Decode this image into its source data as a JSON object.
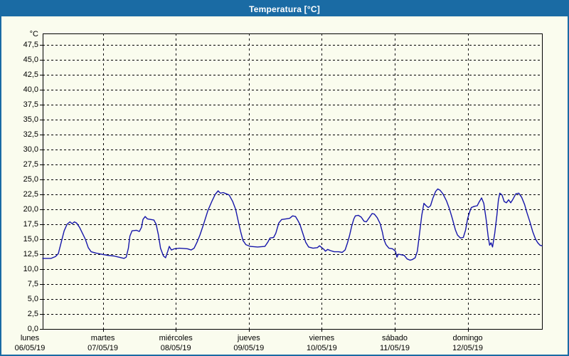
{
  "window": {
    "title": "Temperatura [°C]"
  },
  "colors": {
    "titlebar_bg": "#1a6ba4",
    "window_border": "#1a6ba4",
    "plot_background": "#fafcee",
    "grid": "#000000",
    "axis": "#000000",
    "series_line": "#1616aa",
    "title_text": "#ffffff",
    "label_text": "#000000"
  },
  "chart_data": {
    "type": "line",
    "title": "Temperatura [°C]",
    "ylabel": "°C",
    "xlabel": "",
    "legend": "none",
    "grid": "dashed",
    "ylim": [
      0,
      49.4
    ],
    "y_tick_step": 2.5,
    "y_tick_labels": [
      "0,0",
      "2,5",
      "5,0",
      "7,5",
      "10,0",
      "12,5",
      "15,0",
      "17,5",
      "20,0",
      "22,5",
      "25,0",
      "27,5",
      "30,0",
      "32,5",
      "35,0",
      "37,5",
      "40,0",
      "42,5",
      "45,0",
      "47,5"
    ],
    "y_tick_values": [
      0,
      2.5,
      5,
      7.5,
      10,
      12.5,
      15,
      17.5,
      20,
      22.5,
      25,
      27.5,
      30,
      32.5,
      35,
      37.5,
      40,
      42.5,
      45,
      47.5
    ],
    "x_days": [
      {
        "name": "lunes",
        "date": "06/05/19"
      },
      {
        "name": "martes",
        "date": "07/05/19"
      },
      {
        "name": "miércoles",
        "date": "08/05/19"
      },
      {
        "name": "jueves",
        "date": "09/05/19"
      },
      {
        "name": "viernes",
        "date": "10/05/19"
      },
      {
        "name": "sábado",
        "date": "11/05/19"
      },
      {
        "name": "domingo",
        "date": "12/05/19"
      }
    ],
    "series": [
      {
        "name": "Temperatura",
        "unit": "°C",
        "color": "#1616aa",
        "points": [
          [
            0.175,
            11.8
          ],
          [
            0.29,
            11.8
          ],
          [
            0.35,
            12.1
          ],
          [
            0.39,
            12.6
          ],
          [
            0.43,
            14.5
          ],
          [
            0.47,
            16.4
          ],
          [
            0.51,
            17.5
          ],
          [
            0.55,
            17.9
          ],
          [
            0.58,
            17.6
          ],
          [
            0.61,
            17.9
          ],
          [
            0.64,
            17.7
          ],
          [
            0.68,
            17.0
          ],
          [
            0.72,
            16.0
          ],
          [
            0.76,
            15.0
          ],
          [
            0.8,
            13.6
          ],
          [
            0.84,
            12.9
          ],
          [
            0.9,
            12.7
          ],
          [
            0.98,
            12.5
          ],
          [
            1.07,
            12.3
          ],
          [
            1.15,
            12.2
          ],
          [
            1.22,
            12.0
          ],
          [
            1.29,
            11.8
          ],
          [
            1.32,
            12.0
          ],
          [
            1.35,
            13.5
          ],
          [
            1.37,
            15.5
          ],
          [
            1.4,
            16.4
          ],
          [
            1.46,
            16.5
          ],
          [
            1.5,
            16.3
          ],
          [
            1.53,
            17.0
          ],
          [
            1.55,
            18.3
          ],
          [
            1.58,
            18.8
          ],
          [
            1.61,
            18.4
          ],
          [
            1.66,
            18.3
          ],
          [
            1.7,
            18.2
          ],
          [
            1.73,
            17.5
          ],
          [
            1.76,
            15.8
          ],
          [
            1.79,
            13.5
          ],
          [
            1.83,
            12.2
          ],
          [
            1.86,
            11.9
          ],
          [
            1.89,
            13.0
          ],
          [
            1.91,
            13.8
          ],
          [
            1.94,
            13.2
          ],
          [
            1.98,
            13.4
          ],
          [
            2.05,
            13.5
          ],
          [
            2.16,
            13.4
          ],
          [
            2.21,
            13.2
          ],
          [
            2.25,
            13.5
          ],
          [
            2.29,
            14.5
          ],
          [
            2.33,
            15.7
          ],
          [
            2.38,
            17.5
          ],
          [
            2.44,
            19.8
          ],
          [
            2.5,
            21.5
          ],
          [
            2.54,
            22.5
          ],
          [
            2.58,
            23.1
          ],
          [
            2.61,
            22.7
          ],
          [
            2.65,
            22.8
          ],
          [
            2.69,
            22.6
          ],
          [
            2.73,
            22.4
          ],
          [
            2.78,
            21.3
          ],
          [
            2.82,
            20.0
          ],
          [
            2.86,
            17.8
          ],
          [
            2.89,
            16.2
          ],
          [
            2.92,
            14.8
          ],
          [
            2.96,
            14.1
          ],
          [
            3.02,
            13.8
          ],
          [
            3.12,
            13.7
          ],
          [
            3.22,
            13.8
          ],
          [
            3.26,
            14.5
          ],
          [
            3.29,
            15.2
          ],
          [
            3.34,
            15.3
          ],
          [
            3.37,
            16.0
          ],
          [
            3.41,
            17.7
          ],
          [
            3.45,
            18.3
          ],
          [
            3.51,
            18.4
          ],
          [
            3.56,
            18.5
          ],
          [
            3.6,
            18.9
          ],
          [
            3.64,
            18.8
          ],
          [
            3.67,
            18.2
          ],
          [
            3.7,
            17.5
          ],
          [
            3.74,
            16.0
          ],
          [
            3.78,
            14.5
          ],
          [
            3.82,
            13.7
          ],
          [
            3.88,
            13.5
          ],
          [
            3.94,
            13.6
          ],
          [
            3.97,
            13.9
          ],
          [
            4.0,
            13.6
          ],
          [
            4.03,
            13.3
          ],
          [
            4.05,
            13.0
          ],
          [
            4.08,
            13.3
          ],
          [
            4.12,
            13.1
          ],
          [
            4.17,
            12.9
          ],
          [
            4.23,
            12.9
          ],
          [
            4.28,
            12.8
          ],
          [
            4.32,
            13.2
          ],
          [
            4.35,
            14.3
          ],
          [
            4.38,
            15.6
          ],
          [
            4.41,
            17.2
          ],
          [
            4.44,
            18.4
          ],
          [
            4.46,
            18.9
          ],
          [
            4.5,
            19.0
          ],
          [
            4.54,
            18.7
          ],
          [
            4.58,
            18.0
          ],
          [
            4.61,
            17.9
          ],
          [
            4.65,
            18.6
          ],
          [
            4.69,
            19.3
          ],
          [
            4.72,
            19.2
          ],
          [
            4.76,
            18.6
          ],
          [
            4.8,
            17.6
          ],
          [
            4.83,
            16.2
          ],
          [
            4.85,
            15.0
          ],
          [
            4.88,
            14.1
          ],
          [
            4.92,
            13.5
          ],
          [
            4.97,
            13.4
          ],
          [
            5.01,
            13.0
          ],
          [
            5.03,
            12.0
          ],
          [
            5.05,
            12.5
          ],
          [
            5.09,
            12.4
          ],
          [
            5.13,
            12.3
          ],
          [
            5.17,
            11.7
          ],
          [
            5.21,
            11.5
          ],
          [
            5.24,
            11.6
          ],
          [
            5.28,
            11.9
          ],
          [
            5.31,
            13.0
          ],
          [
            5.34,
            16.0
          ],
          [
            5.37,
            19.0
          ],
          [
            5.4,
            21.0
          ],
          [
            5.43,
            20.6
          ],
          [
            5.46,
            20.3
          ],
          [
            5.49,
            20.6
          ],
          [
            5.52,
            21.8
          ],
          [
            5.56,
            23.0
          ],
          [
            5.59,
            23.4
          ],
          [
            5.62,
            23.2
          ],
          [
            5.66,
            22.6
          ],
          [
            5.71,
            21.4
          ],
          [
            5.75,
            20.1
          ],
          [
            5.79,
            18.4
          ],
          [
            5.83,
            16.6
          ],
          [
            5.86,
            15.7
          ],
          [
            5.9,
            15.2
          ],
          [
            5.94,
            15.3
          ],
          [
            5.97,
            16.5
          ],
          [
            6.0,
            18.5
          ],
          [
            6.03,
            19.7
          ],
          [
            6.05,
            20.3
          ],
          [
            6.09,
            20.5
          ],
          [
            6.13,
            20.6
          ],
          [
            6.16,
            21.3
          ],
          [
            6.19,
            21.9
          ],
          [
            6.22,
            21.0
          ],
          [
            6.25,
            18.5
          ],
          [
            6.28,
            15.5
          ],
          [
            6.3,
            14.0
          ],
          [
            6.32,
            14.4
          ],
          [
            6.34,
            13.7
          ],
          [
            6.37,
            16.0
          ],
          [
            6.4,
            19.0
          ],
          [
            6.42,
            21.5
          ],
          [
            6.44,
            22.7
          ],
          [
            6.47,
            22.4
          ],
          [
            6.5,
            21.3
          ],
          [
            6.53,
            21.1
          ],
          [
            6.56,
            21.6
          ],
          [
            6.59,
            21.1
          ],
          [
            6.62,
            21.7
          ],
          [
            6.66,
            22.6
          ],
          [
            6.7,
            22.7
          ],
          [
            6.74,
            22.0
          ],
          [
            6.78,
            20.8
          ],
          [
            6.81,
            19.5
          ],
          [
            6.85,
            18.0
          ],
          [
            6.89,
            16.3
          ],
          [
            6.93,
            15.0
          ],
          [
            6.96,
            14.4
          ],
          [
            6.99,
            14.0
          ],
          [
            7.02,
            13.9
          ]
        ]
      }
    ]
  }
}
